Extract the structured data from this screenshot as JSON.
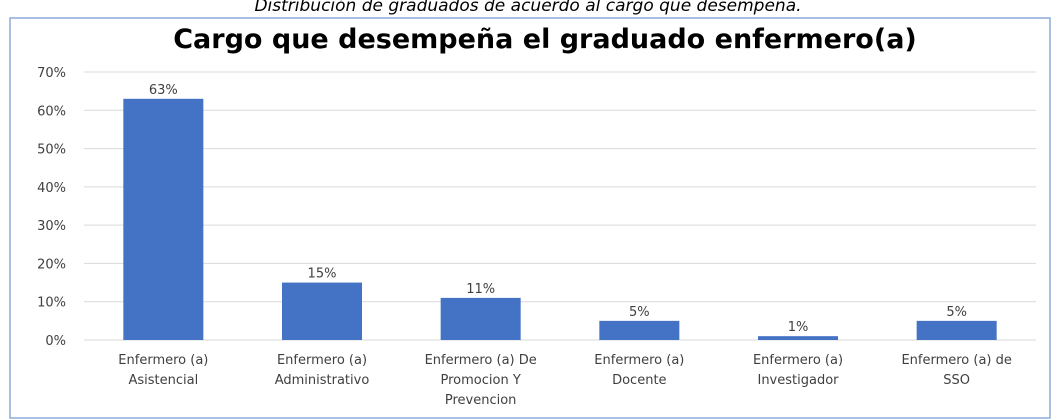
{
  "chart_data": {
    "type": "bar",
    "caption": "Distribución de graduados de acuerdo al cargo que desempeña.",
    "title": "Cargo que desempeña el graduado enfermero(a)",
    "categories": [
      [
        "Enfermero (a)",
        "Asistencial"
      ],
      [
        "Enfermero (a)",
        "Administrativo"
      ],
      [
        "Enfermero (a) De",
        "Promocion Y",
        "Prevencion"
      ],
      [
        "Enfermero (a)",
        "Docente"
      ],
      [
        "Enfermero (a)",
        "Investigador"
      ],
      [
        "Enfermero (a) de",
        "SSO"
      ]
    ],
    "values": [
      63,
      15,
      11,
      5,
      1,
      5
    ],
    "value_labels": [
      "63%",
      "15%",
      "11%",
      "5%",
      "1%",
      "5%"
    ],
    "color": "#4472c4",
    "ylim": [
      0,
      70
    ],
    "yticks": [
      {
        "value": 0,
        "label": "0%"
      },
      {
        "value": 10,
        "label": "10%"
      },
      {
        "value": 20,
        "label": "20%"
      },
      {
        "value": 30,
        "label": "30%"
      },
      {
        "value": 40,
        "label": "40%"
      },
      {
        "value": 50,
        "label": "50%"
      },
      {
        "value": 60,
        "label": "60%"
      },
      {
        "value": 70,
        "label": "70%"
      }
    ],
    "grid": true
  }
}
